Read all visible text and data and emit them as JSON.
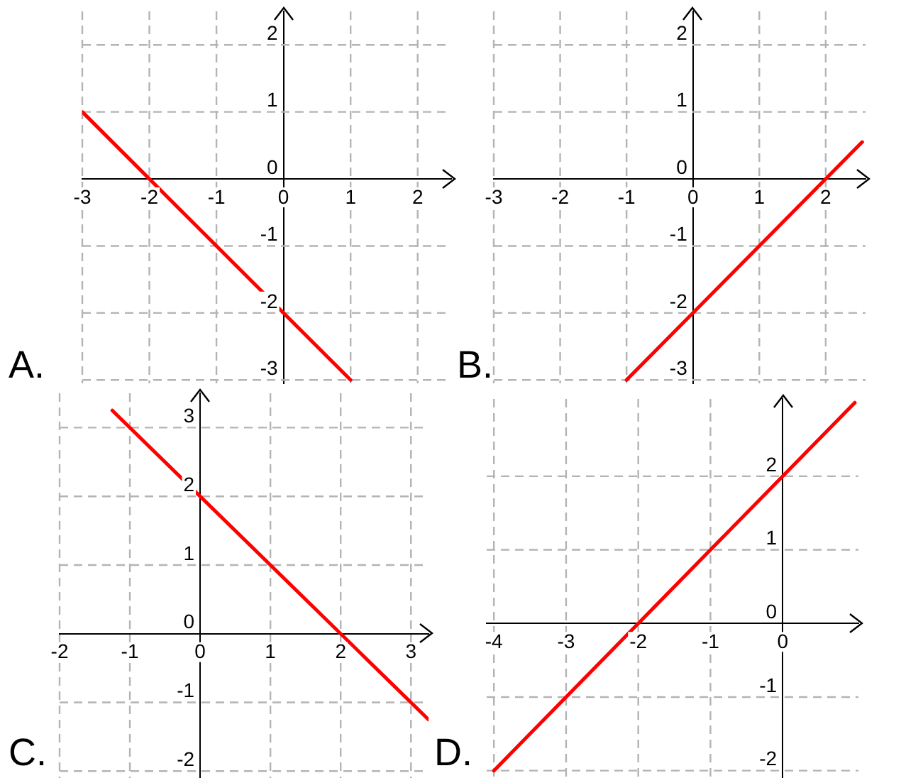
{
  "chart_data": [
    {
      "type": "line",
      "title": "A.",
      "xlim": [
        -3,
        2.5
      ],
      "ylim": [
        -3.05,
        2.5
      ],
      "xticks": [
        -3,
        -2,
        -1,
        0,
        1,
        2
      ],
      "yticks": [
        -3,
        -2,
        -1,
        0,
        1,
        2
      ],
      "grid": true,
      "marker": "none",
      "series": [
        {
          "color": "#ff0000",
          "x": [
            -3,
            1
          ],
          "values": [
            1,
            -3
          ]
        }
      ]
    },
    {
      "type": "line",
      "title": "B.",
      "xlim": [
        -3,
        2.6
      ],
      "ylim": [
        -3.05,
        2.5
      ],
      "xticks": [
        -3,
        -2,
        -1,
        0,
        1,
        2
      ],
      "yticks": [
        -3,
        -2,
        -1,
        0,
        1,
        2
      ],
      "grid": true,
      "marker": "none",
      "series": [
        {
          "color": "#ff0000",
          "x": [
            -1,
            2.55
          ],
          "values": [
            -3,
            0.55
          ]
        }
      ]
    },
    {
      "type": "line",
      "title": "C.",
      "xlim": [
        -2,
        3.25
      ],
      "ylim": [
        -2.1,
        3.5
      ],
      "xticks": [
        -2,
        -1,
        0,
        1,
        2,
        3
      ],
      "yticks": [
        -2,
        -1,
        0,
        1,
        2,
        3
      ],
      "grid": true,
      "marker": "none",
      "series": [
        {
          "color": "#ff0000",
          "x": [
            -1.25,
            3.25
          ],
          "values": [
            3.25,
            -1.25
          ]
        }
      ]
    },
    {
      "type": "line",
      "title": "D.",
      "xlim": [
        -4.1,
        1.05
      ],
      "ylim": [
        -2.1,
        3.05
      ],
      "xticks": [
        -4,
        -3,
        -2,
        -1,
        0
      ],
      "yticks": [
        -2,
        -1,
        0,
        1,
        2
      ],
      "grid": true,
      "marker": "none",
      "series": [
        {
          "color": "#ff0000",
          "x": [
            -4,
            1
          ],
          "values": [
            -2,
            3
          ]
        }
      ]
    }
  ]
}
